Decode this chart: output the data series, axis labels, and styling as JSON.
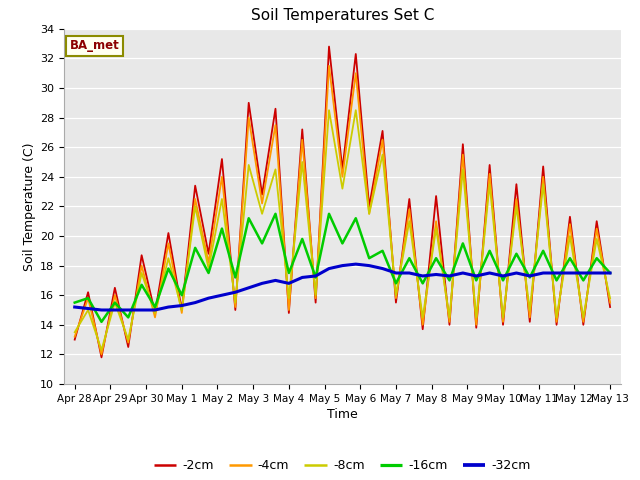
{
  "title": "Soil Temperatures Set C",
  "xlabel": "Time",
  "ylabel": "Soil Temperature (C)",
  "ylim": [
    10,
    34
  ],
  "yticks": [
    10,
    12,
    14,
    16,
    18,
    20,
    22,
    24,
    26,
    28,
    30,
    32,
    34
  ],
  "annotation_text": "BA_met",
  "annotation_bg": "#fffff0",
  "annotation_border": "#8b8b00",
  "annotation_text_color": "#8b0000",
  "plot_bg_color": "#e8e8e8",
  "legend_labels": [
    "-2cm",
    "-4cm",
    "-8cm",
    "-16cm",
    "-32cm"
  ],
  "line_colors": [
    "#cc0000",
    "#ff9900",
    "#cccc00",
    "#00cc00",
    "#0000cc"
  ],
  "line_widths": [
    1.3,
    1.3,
    1.3,
    1.8,
    2.2
  ],
  "xtick_labels": [
    "Apr 28",
    "Apr 29",
    "Apr 30",
    "May 1",
    "May 2",
    "May 3",
    "May 4",
    "May 5",
    "May 6",
    "May 7",
    "May 8",
    "May 9",
    "May 10",
    "May 11",
    "May 12",
    "May 13"
  ],
  "series": {
    "d2cm": [
      13.0,
      16.2,
      11.8,
      16.5,
      12.5,
      18.7,
      14.8,
      20.2,
      15.0,
      23.4,
      18.8,
      25.2,
      15.0,
      29.0,
      22.8,
      28.6,
      14.8,
      27.2,
      15.5,
      32.8,
      24.5,
      32.3,
      22.0,
      27.1,
      15.5,
      22.5,
      13.7,
      22.7,
      14.0,
      26.2,
      13.8,
      24.8,
      14.0,
      23.5,
      14.2,
      24.7,
      14.0,
      21.3,
      14.0,
      21.0,
      15.2
    ],
    "d4cm": [
      13.2,
      15.8,
      12.0,
      16.0,
      12.8,
      18.0,
      14.5,
      19.5,
      14.8,
      22.5,
      18.2,
      24.0,
      15.2,
      28.0,
      22.2,
      27.5,
      15.0,
      26.5,
      15.8,
      31.5,
      24.0,
      31.0,
      21.5,
      26.5,
      15.8,
      21.8,
      14.0,
      21.0,
      14.2,
      25.5,
      14.0,
      24.2,
      14.2,
      22.5,
      14.5,
      24.0,
      14.2,
      20.8,
      14.2,
      20.5,
      15.5
    ],
    "d8cm": [
      13.5,
      15.0,
      12.3,
      15.5,
      13.0,
      17.5,
      14.8,
      18.5,
      15.0,
      22.0,
      17.8,
      22.5,
      15.5,
      24.8,
      21.5,
      24.5,
      15.8,
      25.0,
      16.0,
      28.5,
      23.2,
      28.5,
      21.5,
      25.5,
      16.0,
      21.0,
      14.5,
      20.5,
      14.5,
      24.5,
      14.5,
      23.5,
      14.5,
      22.0,
      15.0,
      23.5,
      14.5,
      20.0,
      14.5,
      19.8,
      15.8
    ],
    "d16cm": [
      15.5,
      15.8,
      14.2,
      15.5,
      14.5,
      16.7,
      15.2,
      17.8,
      16.0,
      19.2,
      17.5,
      20.5,
      17.2,
      21.2,
      19.5,
      21.5,
      17.5,
      19.8,
      17.2,
      21.5,
      19.5,
      21.2,
      18.5,
      19.0,
      16.8,
      18.5,
      16.8,
      18.5,
      17.0,
      19.5,
      17.0,
      19.0,
      17.0,
      18.8,
      17.2,
      19.0,
      17.0,
      18.5,
      17.0,
      18.5,
      17.5
    ],
    "d32cm": [
      15.2,
      15.1,
      15.0,
      15.0,
      15.0,
      15.0,
      15.0,
      15.2,
      15.3,
      15.5,
      15.8,
      16.0,
      16.2,
      16.5,
      16.8,
      17.0,
      16.8,
      17.2,
      17.3,
      17.8,
      18.0,
      18.1,
      18.0,
      17.8,
      17.5,
      17.5,
      17.3,
      17.4,
      17.3,
      17.5,
      17.3,
      17.5,
      17.3,
      17.5,
      17.3,
      17.5,
      17.5,
      17.5,
      17.5,
      17.5,
      17.5
    ]
  }
}
